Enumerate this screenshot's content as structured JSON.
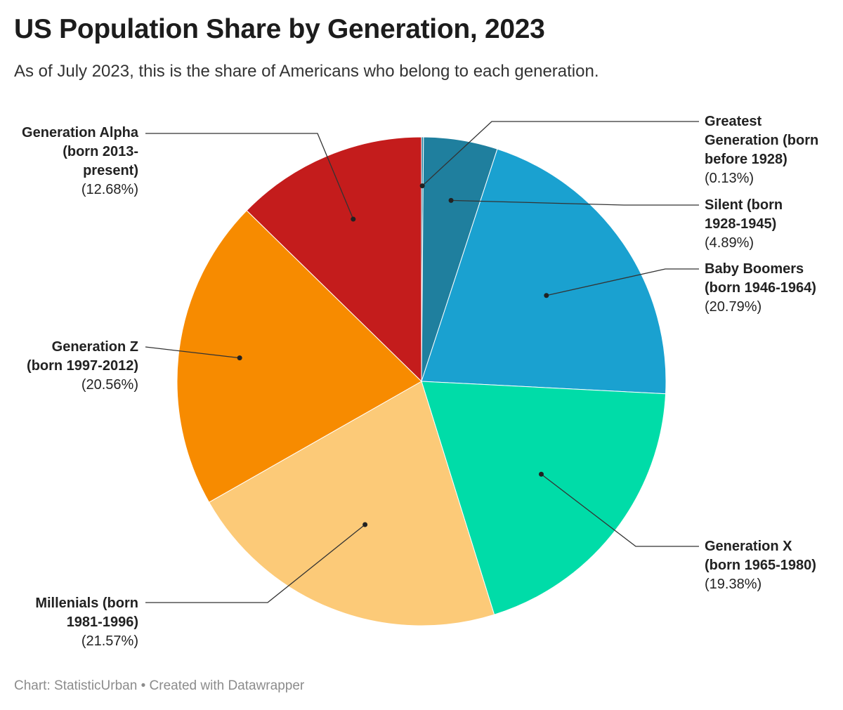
{
  "chart_data": {
    "type": "pie",
    "title": "US Population Share by Generation, 2023",
    "subtitle": "As of July 2023, this is the share of Americans who belong to each generation.",
    "footer": {
      "source": "Chart: StatisticUrban",
      "separator": "•",
      "credit": "Created with Datawrapper"
    },
    "slices": [
      {
        "label": "Greatest Generation (born before 1928)",
        "pct_label": "(0.13%)",
        "value": 0.13,
        "color": "#1f7f9e"
      },
      {
        "label": "Silent (born 1928-1945)",
        "pct_label": "(4.89%)",
        "value": 4.89,
        "color": "#1f7f9e"
      },
      {
        "label": "Baby Boomers (born 1946-1964)",
        "pct_label": "(20.79%)",
        "value": 20.79,
        "color": "#1aa1d0"
      },
      {
        "label": "Generation X (born 1965-1980)",
        "pct_label": "(19.38%)",
        "value": 19.38,
        "color": "#00dca8"
      },
      {
        "label": "Millenials (born 1981-1996)",
        "pct_label": "(21.57%)",
        "value": 21.57,
        "color": "#fcca78"
      },
      {
        "label": "Generation Z (born 1997-2012)",
        "pct_label": "(20.56%)",
        "value": 20.56,
        "color": "#f78b00"
      },
      {
        "label": "Generation Alpha (born 2013-present)",
        "pct_label": "(12.68%)",
        "value": 12.68,
        "color": "#c41c1c"
      }
    ]
  }
}
